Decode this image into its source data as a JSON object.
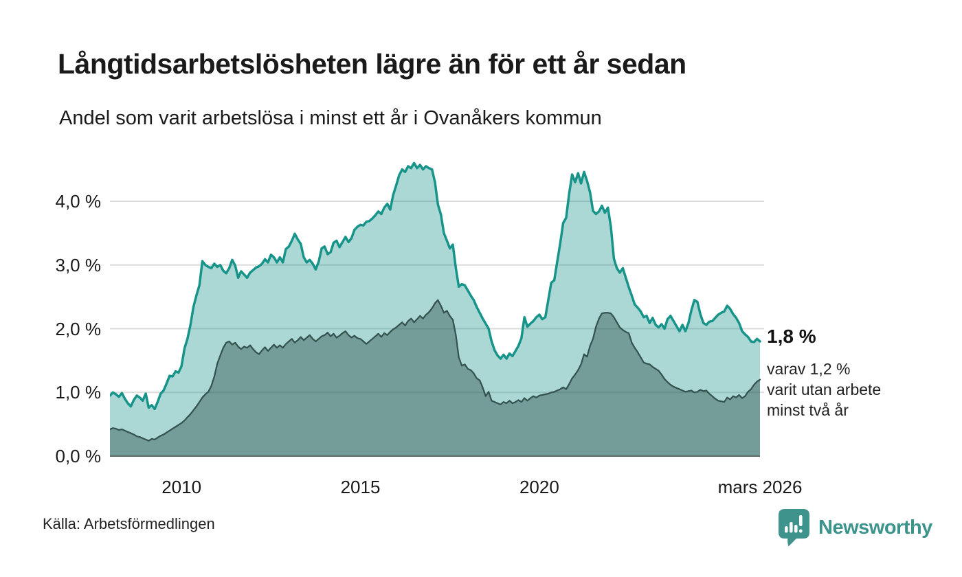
{
  "header": {
    "title": "Långtidsarbetslösheten lägre än för ett år sedan",
    "subtitle": "Andel som varit arbetslösa i minst ett år i Ovanåkers kommun"
  },
  "chart_data": {
    "type": "area",
    "title": "Långtidsarbetslösheten lägre än för ett år sedan",
    "unit": "%",
    "x_start": "2008-01",
    "x_end": "2026-03",
    "x_frequency": "monthly",
    "ylim": [
      0,
      4.8
    ],
    "grid": "horizontal",
    "y_ticks": [
      {
        "label": "0,0 %",
        "value": 0
      },
      {
        "label": "1,0 %",
        "value": 1
      },
      {
        "label": "2,0 %",
        "value": 2
      },
      {
        "label": "3,0 %",
        "value": 3
      },
      {
        "label": "4,0 %",
        "value": 4
      }
    ],
    "x_ticks": [
      {
        "label": "2010",
        "month_index": 24
      },
      {
        "label": "2015",
        "month_index": 84
      },
      {
        "label": "2020",
        "month_index": 144
      },
      {
        "label": "mars 2026",
        "month_index": 218
      }
    ],
    "series": [
      {
        "name": "Andel arbetslösa minst ett år",
        "stroke": "#17948a",
        "stroke_width": 3.5,
        "fill": "rgba(23,148,138,0.36)",
        "values": [
          0.95,
          1.0,
          0.97,
          0.93,
          0.99,
          0.9,
          0.83,
          0.78,
          0.88,
          0.95,
          0.92,
          0.87,
          0.98,
          0.76,
          0.8,
          0.74,
          0.85,
          0.98,
          1.03,
          1.14,
          1.26,
          1.25,
          1.33,
          1.31,
          1.41,
          1.69,
          1.84,
          2.06,
          2.34,
          2.52,
          2.68,
          3.06,
          3.0,
          2.97,
          2.95,
          3.02,
          2.97,
          3.0,
          2.91,
          2.87,
          2.95,
          3.08,
          2.99,
          2.8,
          2.9,
          2.85,
          2.8,
          2.88,
          2.92,
          2.96,
          2.98,
          3.02,
          3.09,
          3.04,
          3.16,
          3.12,
          3.04,
          3.12,
          3.04,
          3.25,
          3.29,
          3.38,
          3.49,
          3.4,
          3.33,
          3.12,
          3.04,
          3.08,
          3.02,
          2.93,
          3.05,
          3.26,
          3.29,
          3.17,
          3.2,
          3.35,
          3.38,
          3.28,
          3.36,
          3.44,
          3.36,
          3.42,
          3.55,
          3.6,
          3.63,
          3.62,
          3.68,
          3.69,
          3.73,
          3.78,
          3.84,
          3.8,
          3.9,
          3.96,
          3.87,
          4.1,
          4.25,
          4.41,
          4.5,
          4.46,
          4.55,
          4.52,
          4.6,
          4.52,
          4.57,
          4.5,
          4.55,
          4.52,
          4.5,
          4.3,
          3.95,
          3.79,
          3.5,
          3.38,
          3.26,
          3.32,
          2.95,
          2.66,
          2.7,
          2.68,
          2.6,
          2.52,
          2.45,
          2.34,
          2.25,
          2.16,
          2.08,
          2.0,
          1.8,
          1.66,
          1.58,
          1.53,
          1.59,
          1.53,
          1.61,
          1.57,
          1.65,
          1.73,
          1.85,
          2.18,
          2.03,
          2.08,
          2.12,
          2.18,
          2.22,
          2.15,
          2.18,
          2.45,
          2.72,
          2.76,
          3.05,
          3.34,
          3.66,
          3.74,
          4.12,
          4.42,
          4.3,
          4.44,
          4.28,
          4.46,
          4.32,
          4.14,
          3.85,
          3.8,
          3.84,
          3.93,
          3.82,
          3.9,
          3.6,
          3.1,
          2.95,
          2.88,
          2.95,
          2.8,
          2.65,
          2.52,
          2.38,
          2.33,
          2.27,
          2.18,
          2.2,
          2.09,
          2.17,
          2.06,
          2.02,
          2.07,
          2.0,
          2.15,
          2.2,
          2.12,
          2.04,
          1.96,
          2.06,
          1.96,
          2.09,
          2.29,
          2.45,
          2.42,
          2.23,
          2.09,
          2.06,
          2.11,
          2.12,
          2.17,
          2.22,
          2.25,
          2.27,
          2.36,
          2.31,
          2.23,
          2.17,
          2.09,
          1.96,
          1.91,
          1.87,
          1.8,
          1.79,
          1.84,
          1.8
        ]
      },
      {
        "name": "Andel arbetslösa minst två år",
        "stroke": "#35534e",
        "stroke_width": 2.25,
        "fill": "rgba(40,75,69,0.42)",
        "values": [
          0.42,
          0.44,
          0.43,
          0.41,
          0.42,
          0.4,
          0.38,
          0.36,
          0.34,
          0.31,
          0.3,
          0.28,
          0.26,
          0.24,
          0.27,
          0.26,
          0.29,
          0.32,
          0.34,
          0.37,
          0.4,
          0.43,
          0.46,
          0.49,
          0.52,
          0.56,
          0.61,
          0.66,
          0.72,
          0.78,
          0.85,
          0.92,
          0.97,
          1.01,
          1.1,
          1.25,
          1.45,
          1.58,
          1.7,
          1.78,
          1.8,
          1.75,
          1.78,
          1.72,
          1.68,
          1.72,
          1.7,
          1.74,
          1.68,
          1.63,
          1.6,
          1.66,
          1.71,
          1.65,
          1.7,
          1.75,
          1.7,
          1.74,
          1.7,
          1.76,
          1.8,
          1.84,
          1.78,
          1.82,
          1.87,
          1.82,
          1.86,
          1.9,
          1.84,
          1.8,
          1.84,
          1.88,
          1.9,
          1.94,
          1.88,
          1.92,
          1.86,
          1.89,
          1.93,
          1.96,
          1.9,
          1.86,
          1.89,
          1.85,
          1.84,
          1.8,
          1.76,
          1.8,
          1.84,
          1.88,
          1.92,
          1.87,
          1.93,
          1.9,
          1.95,
          1.99,
          2.02,
          2.06,
          2.1,
          2.05,
          2.12,
          2.16,
          2.1,
          2.15,
          2.2,
          2.16,
          2.22,
          2.26,
          2.32,
          2.4,
          2.45,
          2.36,
          2.25,
          2.28,
          2.2,
          2.14,
          1.9,
          1.55,
          1.42,
          1.44,
          1.37,
          1.35,
          1.3,
          1.22,
          1.19,
          1.08,
          0.94,
          1.01,
          0.87,
          0.85,
          0.83,
          0.81,
          0.85,
          0.83,
          0.87,
          0.83,
          0.85,
          0.88,
          0.85,
          0.91,
          0.87,
          0.91,
          0.94,
          0.92,
          0.95,
          0.96,
          0.97,
          0.98,
          1.0,
          1.01,
          1.03,
          1.05,
          1.08,
          1.05,
          1.13,
          1.22,
          1.28,
          1.35,
          1.44,
          1.6,
          1.56,
          1.73,
          1.84,
          2.03,
          2.16,
          2.24,
          2.25,
          2.25,
          2.24,
          2.18,
          2.1,
          2.02,
          1.98,
          1.95,
          1.93,
          1.78,
          1.7,
          1.63,
          1.55,
          1.47,
          1.45,
          1.44,
          1.4,
          1.37,
          1.34,
          1.28,
          1.21,
          1.16,
          1.12,
          1.09,
          1.07,
          1.05,
          1.03,
          1.01,
          1.02,
          1.03,
          1.0,
          1.01,
          1.04,
          1.02,
          1.03,
          0.98,
          0.94,
          0.9,
          0.87,
          0.86,
          0.85,
          0.92,
          0.89,
          0.94,
          0.92,
          0.96,
          0.91,
          0.94,
          1.01,
          1.05,
          1.12,
          1.17,
          1.2
        ]
      }
    ],
    "annotation": {
      "value_label": "1,8 %",
      "detail_lines": [
        "varav 1,2 %",
        "varit utan arbete",
        "minst två år"
      ]
    },
    "colors": {
      "gridline": "#dcdcdc",
      "baseline": "#5f6b69"
    }
  },
  "footer": {
    "source": "Källa: Arbetsförmedlingen",
    "brand": "Newsworthy"
  }
}
